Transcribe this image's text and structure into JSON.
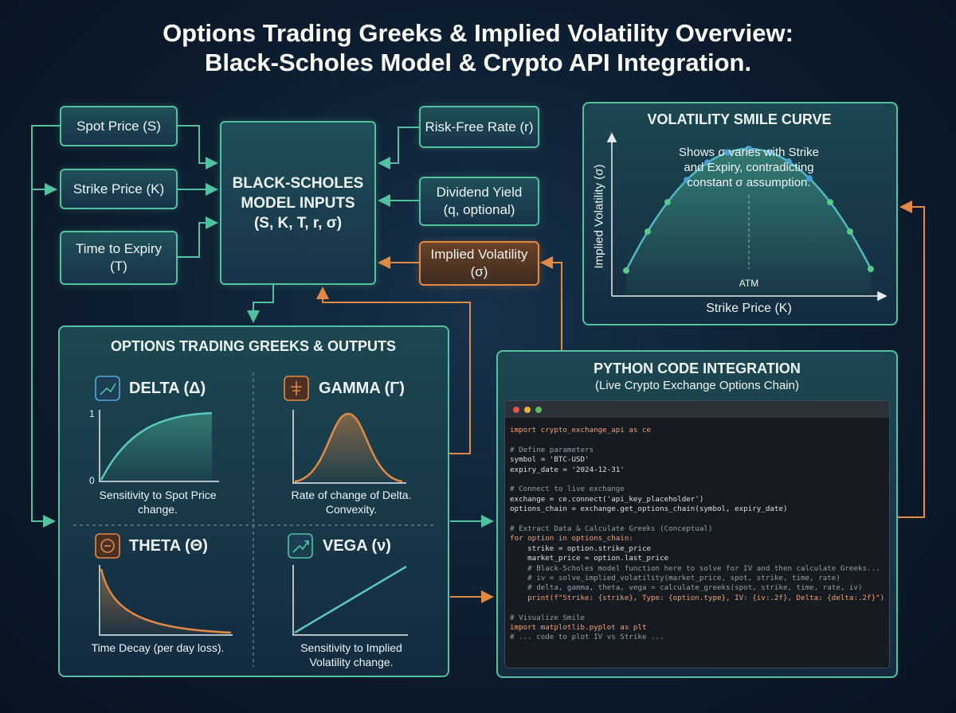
{
  "title": {
    "lines": [
      "Options Trading Greeks & Implied Volatility Overview:",
      "Black-Scholes Model & Crypto API Integration."
    ]
  },
  "inputs_left": [
    {
      "lines": [
        "Spot Price (S)"
      ]
    },
    {
      "lines": [
        "Strike Price (K)"
      ]
    },
    {
      "lines": [
        "Time to Expiry",
        "(T)"
      ]
    }
  ],
  "model": {
    "lines": [
      "BLACK-SCHOLES",
      "MODEL INPUTS",
      "(S, K, T, r, σ)"
    ]
  },
  "inputs_right": [
    {
      "lines": [
        "Risk-Free Rate (r)"
      ]
    },
    {
      "lines": [
        "Dividend Yield",
        "(q, optional)"
      ]
    },
    {
      "lines": [
        "Implied Volatility",
        "(σ)"
      ]
    }
  ],
  "smile": {
    "title": "VOLATILITY SMILE CURVE",
    "note": [
      "Shows σ varies with Strike",
      "and Expiry, contradicting",
      "constant σ assumption."
    ],
    "y_label": "Implied Volatility (σ)",
    "x_label": "Strike Price (K)",
    "atm": "ATM"
  },
  "greeks": {
    "title": "OPTIONS TRADING GREEKS & OUTPUTS",
    "items": [
      {
        "name": "DELTA (Δ)",
        "caption": [
          "Sensitivity to Spot Price",
          "change."
        ],
        "axis": [
          "1",
          "0"
        ]
      },
      {
        "name": "GAMMA (Γ)",
        "caption": [
          "Rate of change of Delta.",
          "Convexity."
        ]
      },
      {
        "name": "THETA (Θ)",
        "caption": [
          "Time Decay (per day loss)."
        ]
      },
      {
        "name": "VEGA (ν)",
        "caption": [
          "Sensitivity to Implied",
          "Volatility change."
        ]
      }
    ]
  },
  "python": {
    "title": "PYTHON CODE INTEGRATION",
    "subtitle": "(Live Crypto Exchange Options Chain)",
    "code": [
      [
        "import crypto_exchange_api as ce"
      ],
      [
        "# Define parameters",
        "symbol = 'BTC-USD'",
        "expiry_date = '2024-12-31'"
      ],
      [
        "# Connect to live exchange",
        "exchange = ce.connect('api_key_placeholder')",
        "options_chain = exchange.get_options_chain(symbol, expiry_date)"
      ],
      [
        "# Extract Data & Calculate Greeks (Conceptual)",
        "for option in options_chain:",
        "    strike = option.strike_price",
        "    market_price = option.last_price",
        "    # Black-Scholes model function here to solve for IV and then calculate Greeks...",
        "    # iv = solve_implied_volatility(market_price, spot, strike, time, rate)",
        "    # delta, gamma, theta, vega = calculate_greeks(spot, strike, time, rate, iv)",
        "    print(f\"Strike: {strike}, Type: {option.type}, IV: {iv:.2f}, Delta: {delta:.2f}\")"
      ],
      [
        "# Visualize Smile",
        "import matplotlib.pyplot as plt",
        "# ... code to plot IV vs Strike ..."
      ]
    ]
  }
}
